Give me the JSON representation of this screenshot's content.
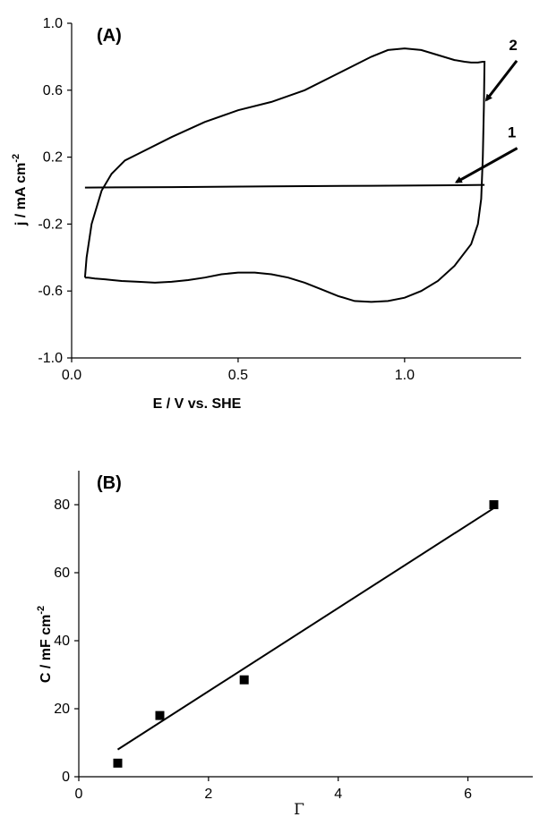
{
  "chart_data": [
    {
      "type": "line",
      "panel_label": "(A)",
      "xlabel": "E / V vs. SHE",
      "ylabel_main": "j / mA cm",
      "ylabel_sup": "-2",
      "xlim": [
        0.0,
        1.35
      ],
      "ylim": [
        -1.0,
        1.0
      ],
      "xticks": [
        0.0,
        0.5,
        1.0
      ],
      "xtick_labels": [
        "0.0",
        "0.5",
        "1.0"
      ],
      "yticks": [
        -1.0,
        -0.6,
        -0.2,
        0.2,
        0.6,
        1.0
      ],
      "ytick_labels": [
        "-1.0",
        "-0.6",
        "-0.2",
        "0.2",
        "0.6",
        "1.0"
      ],
      "grid": false,
      "series": [
        {
          "name": "1",
          "x": [
            0.04,
            0.3,
            0.6,
            0.9,
            1.15,
            1.24
          ],
          "y": [
            0.018,
            0.021,
            0.025,
            0.029,
            0.032,
            0.034
          ]
        },
        {
          "name": "2",
          "x": [
            0.04,
            0.045,
            0.06,
            0.09,
            0.12,
            0.16,
            0.2,
            0.3,
            0.4,
            0.5,
            0.6,
            0.7,
            0.8,
            0.9,
            0.95,
            1.0,
            1.05,
            1.1,
            1.15,
            1.18,
            1.2,
            1.22,
            1.235,
            1.24,
            1.238,
            1.235,
            1.23,
            1.22,
            1.2,
            1.15,
            1.1,
            1.05,
            1.0,
            0.95,
            0.9,
            0.85,
            0.8,
            0.75,
            0.7,
            0.65,
            0.6,
            0.55,
            0.5,
            0.45,
            0.4,
            0.35,
            0.3,
            0.25,
            0.2,
            0.15,
            0.1,
            0.07,
            0.05,
            0.04
          ],
          "y": [
            -0.52,
            -0.4,
            -0.2,
            0.0,
            0.1,
            0.18,
            0.22,
            0.32,
            0.41,
            0.48,
            0.53,
            0.6,
            0.7,
            0.8,
            0.84,
            0.85,
            0.84,
            0.81,
            0.78,
            0.77,
            0.765,
            0.765,
            0.77,
            0.77,
            0.5,
            0.2,
            -0.05,
            -0.2,
            -0.32,
            -0.45,
            -0.54,
            -0.6,
            -0.64,
            -0.66,
            -0.665,
            -0.66,
            -0.63,
            -0.59,
            -0.55,
            -0.52,
            -0.5,
            -0.49,
            -0.49,
            -0.5,
            -0.52,
            -0.535,
            -0.545,
            -0.55,
            -0.545,
            -0.54,
            -0.53,
            -0.525,
            -0.52,
            -0.52
          ]
        }
      ],
      "annotations": [
        {
          "text": "2",
          "arrow_tip": [
            1.24,
            0.53
          ]
        },
        {
          "text": "1",
          "arrow_tip": [
            1.15,
            0.04
          ]
        }
      ]
    },
    {
      "type": "scatter",
      "panel_label": "(B)",
      "xlabel": "Γ",
      "ylabel_main": "C / mF cm",
      "ylabel_sup": "-2",
      "xlim": [
        0,
        7
      ],
      "ylim": [
        0,
        90
      ],
      "xticks": [
        0,
        2,
        4,
        6
      ],
      "xtick_labels": [
        "0",
        "2",
        "4",
        "6"
      ],
      "yticks": [
        0,
        20,
        40,
        60,
        80
      ],
      "ytick_labels": [
        "0",
        "20",
        "40",
        "60",
        "80"
      ],
      "grid": false,
      "points": {
        "x": [
          0.6,
          1.25,
          2.55,
          6.4
        ],
        "y": [
          4,
          18,
          28.5,
          80
        ]
      },
      "fit_line": {
        "x": [
          0.6,
          6.4
        ],
        "y": [
          8,
          79
        ]
      }
    }
  ]
}
